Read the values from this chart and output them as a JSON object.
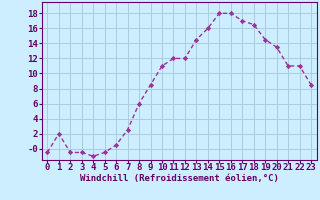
{
  "x": [
    0,
    1,
    2,
    3,
    4,
    5,
    6,
    7,
    8,
    9,
    10,
    11,
    12,
    13,
    14,
    15,
    16,
    17,
    18,
    19,
    20,
    21,
    22,
    23
  ],
  "y": [
    -0.5,
    2,
    -0.5,
    -0.5,
    -1,
    -0.5,
    0.5,
    2.5,
    6,
    8.5,
    11,
    12,
    12,
    14.5,
    16,
    18,
    18,
    17,
    16.5,
    14.5,
    13.5,
    11,
    11,
    8.5
  ],
  "line_color": "#993399",
  "marker": "D",
  "marker_size": 2.2,
  "bg_color": "#cceeff",
  "grid_color": "#aaccdd",
  "xlabel": "Windchill (Refroidissement éolien,°C)",
  "xlabel_fontsize": 6.5,
  "tick_fontsize": 6.5,
  "ylim": [
    -1.5,
    19.5
  ],
  "xlim": [
    -0.5,
    23.5
  ],
  "yticks": [
    0,
    2,
    4,
    6,
    8,
    10,
    12,
    14,
    16,
    18
  ],
  "ytick_labels": [
    "-0",
    "2",
    "4",
    "6",
    "8",
    "10",
    "12",
    "14",
    "16",
    "18"
  ],
  "xticks": [
    0,
    1,
    2,
    3,
    4,
    5,
    6,
    7,
    8,
    9,
    10,
    11,
    12,
    13,
    14,
    15,
    16,
    17,
    18,
    19,
    20,
    21,
    22,
    23
  ],
  "tick_color": "#660066",
  "spine_color": "#660066",
  "line_width": 1.0
}
